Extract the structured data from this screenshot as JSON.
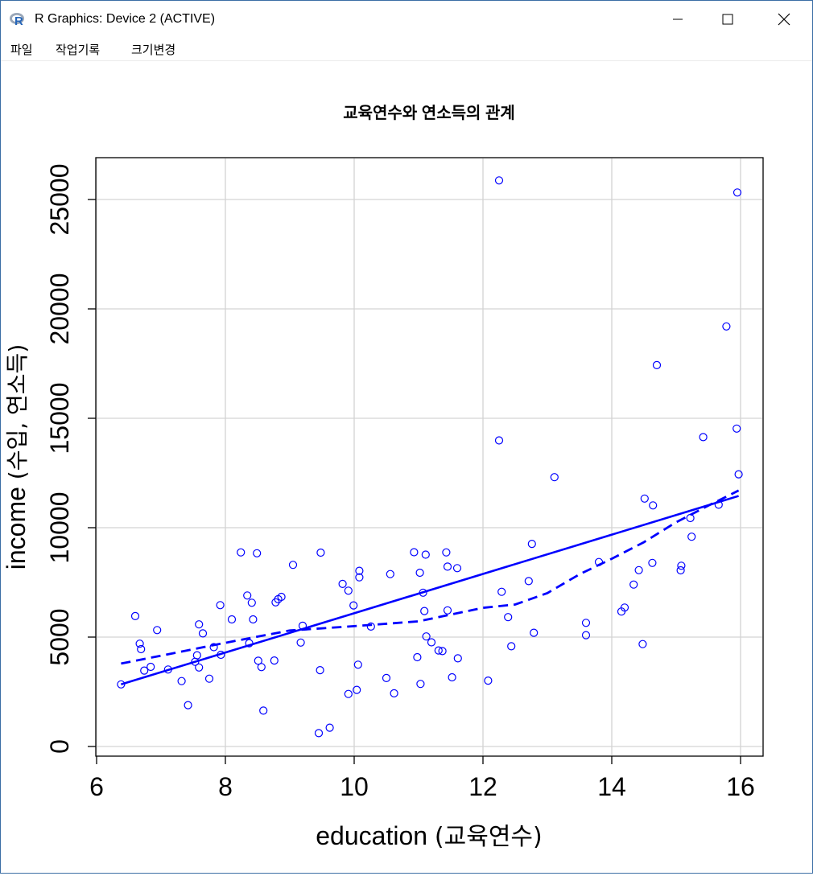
{
  "window": {
    "title": "R Graphics: Device 2 (ACTIVE)",
    "icon": "r-logo-icon",
    "controls": [
      "minimize-icon",
      "maximize-icon",
      "close-icon"
    ]
  },
  "menu": {
    "items": [
      {
        "label": "파일"
      },
      {
        "label": "작업기록"
      },
      {
        "label": "크기변경"
      }
    ]
  },
  "colors": {
    "series": "#0000ff",
    "grid": "#d3d3d3",
    "axis": "#000000"
  },
  "chart_data": {
    "type": "scatter",
    "title": "교육연수와 연소득의 관계",
    "xlabel_main": "education",
    "xlabel_paren": "(교육연수)",
    "ylabel_main": "income",
    "ylabel_paren": "(수입, 연소득)",
    "xlim": [
      6,
      16
    ],
    "ylim": [
      0,
      26000
    ],
    "xticks": [
      "6",
      "8",
      "10",
      "12",
      "14",
      "16"
    ],
    "yticks": [
      "0",
      "5000",
      "10000",
      "15000",
      "20000",
      "25000"
    ],
    "grid": true,
    "points": [
      [
        6.38,
        2840
      ],
      [
        6.6,
        5960
      ],
      [
        6.67,
        4700
      ],
      [
        6.69,
        4450
      ],
      [
        6.74,
        3470
      ],
      [
        6.84,
        3640
      ],
      [
        6.94,
        5320
      ],
      [
        7.11,
        3520
      ],
      [
        7.32,
        2990
      ],
      [
        7.42,
        1890
      ],
      [
        7.53,
        3870
      ],
      [
        7.56,
        4170
      ],
      [
        7.59,
        5580
      ],
      [
        7.59,
        3610
      ],
      [
        7.65,
        5170
      ],
      [
        7.75,
        3100
      ],
      [
        7.82,
        4540
      ],
      [
        7.92,
        6460
      ],
      [
        7.93,
        4190
      ],
      [
        8.1,
        5810
      ],
      [
        8.24,
        8870
      ],
      [
        8.34,
        6900
      ],
      [
        8.37,
        4720
      ],
      [
        8.41,
        6570
      ],
      [
        8.43,
        5810
      ],
      [
        8.49,
        8830
      ],
      [
        8.51,
        3920
      ],
      [
        8.56,
        3630
      ],
      [
        8.59,
        1640
      ],
      [
        8.76,
        3930
      ],
      [
        8.78,
        6590
      ],
      [
        8.82,
        6730
      ],
      [
        8.87,
        6840
      ],
      [
        9.05,
        8300
      ],
      [
        9.17,
        4750
      ],
      [
        9.2,
        5520
      ],
      [
        9.45,
        610
      ],
      [
        9.47,
        3490
      ],
      [
        9.48,
        8860
      ],
      [
        9.62,
        860
      ],
      [
        9.82,
        7430
      ],
      [
        9.91,
        2400
      ],
      [
        9.91,
        7120
      ],
      [
        9.99,
        6450
      ],
      [
        10.04,
        2590
      ],
      [
        10.06,
        3740
      ],
      [
        10.08,
        7730
      ],
      [
        10.08,
        8030
      ],
      [
        10.26,
        5480
      ],
      [
        10.5,
        3130
      ],
      [
        10.56,
        7880
      ],
      [
        10.62,
        2430
      ],
      [
        10.93,
        8880
      ],
      [
        10.98,
        4080
      ],
      [
        11.02,
        7940
      ],
      [
        11.03,
        2860
      ],
      [
        11.07,
        7030
      ],
      [
        11.09,
        6190
      ],
      [
        11.11,
        8770
      ],
      [
        11.12,
        5030
      ],
      [
        11.2,
        4760
      ],
      [
        11.31,
        4390
      ],
      [
        11.37,
        4360
      ],
      [
        11.43,
        8870
      ],
      [
        11.45,
        6220
      ],
      [
        11.45,
        8220
      ],
      [
        11.52,
        3160
      ],
      [
        11.6,
        8150
      ],
      [
        11.61,
        4030
      ],
      [
        12.08,
        3010
      ],
      [
        12.25,
        13990
      ],
      [
        12.25,
        25870
      ],
      [
        12.29,
        7070
      ],
      [
        12.39,
        5910
      ],
      [
        12.44,
        4580
      ],
      [
        12.71,
        7560
      ],
      [
        12.76,
        9260
      ],
      [
        12.79,
        5200
      ],
      [
        13.11,
        12310
      ],
      [
        13.6,
        5650
      ],
      [
        13.6,
        5090
      ],
      [
        13.8,
        8430
      ],
      [
        14.15,
        6170
      ],
      [
        14.2,
        6350
      ],
      [
        14.34,
        7400
      ],
      [
        14.42,
        8060
      ],
      [
        14.48,
        4680
      ],
      [
        14.51,
        11330
      ],
      [
        14.63,
        8390
      ],
      [
        14.64,
        11020
      ],
      [
        14.7,
        17430
      ],
      [
        15.07,
        8050
      ],
      [
        15.08,
        8260
      ],
      [
        15.22,
        10440
      ],
      [
        15.24,
        9590
      ],
      [
        15.42,
        14140
      ],
      [
        15.66,
        11050
      ],
      [
        15.78,
        19200
      ],
      [
        15.94,
        14530
      ],
      [
        15.95,
        25320
      ],
      [
        15.97,
        12440
      ]
    ],
    "regression_line": {
      "style": "solid",
      "x": [
        6.38,
        15.97
      ],
      "y": [
        2840,
        11450
      ]
    },
    "smooth_line": {
      "style": "dashed",
      "x": [
        6.38,
        7.0,
        8.0,
        9.0,
        10.0,
        11.0,
        12.0,
        12.5,
        13.0,
        13.5,
        14.0,
        14.5,
        15.0,
        15.5,
        15.97
      ],
      "y": [
        3790,
        4150,
        4740,
        5300,
        5500,
        5720,
        6340,
        6490,
        7010,
        7870,
        8580,
        9340,
        10250,
        11010,
        11700
      ]
    }
  }
}
